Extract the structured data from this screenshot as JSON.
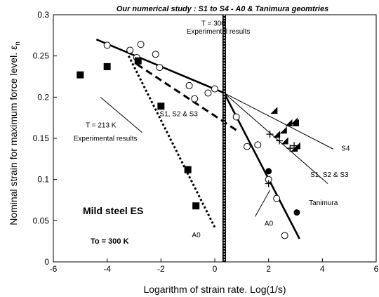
{
  "chart_data": {
    "type": "scatter",
    "title": "Our numerical study : S1 to S4 - A0 & Tanimura geomtries",
    "xlabel": "Logarithm of strain rate. Log(1/s)",
    "ylabel": "Nominal strain for maximum force level. ε",
    "ylabel_subscript": "n",
    "xlim": [
      -6,
      6
    ],
    "ylim": [
      0,
      0.3
    ],
    "xticks": [
      "-6",
      "-4",
      "-2",
      "0",
      "2",
      "4",
      "6"
    ],
    "yticks": [
      "0",
      "0.05",
      "0.1",
      "0.15",
      "0.2",
      "0.25",
      "0.3"
    ],
    "xtick_values": [
      -6,
      -4,
      -2,
      0,
      2,
      4,
      6
    ],
    "ytick_values": [
      0,
      0.05,
      0.1,
      0.15,
      0.2,
      0.25,
      0.3
    ],
    "grid": false,
    "vertical_marker_x": 0.35,
    "series": [
      {
        "marker": "open-circle",
        "points": [
          [
            -4,
            0.263
          ],
          [
            -3.15,
            0.257
          ],
          [
            -2.9,
            0.248
          ],
          [
            -2.75,
            0.264
          ],
          [
            -2.2,
            0.252
          ],
          [
            -2.05,
            0.236
          ],
          [
            -0.95,
            0.214
          ],
          [
            -0.75,
            0.198
          ],
          [
            -0.25,
            0.205
          ],
          [
            0,
            0.21
          ],
          [
            0.8,
            0.176
          ],
          [
            1.2,
            0.14
          ],
          [
            1.6,
            0.142
          ],
          [
            2,
            0.1
          ],
          [
            2.3,
            0.077
          ],
          [
            2.6,
            0.032
          ]
        ]
      },
      {
        "marker": "filled-square",
        "points": [
          [
            -5,
            0.227
          ],
          [
            -4,
            0.237
          ],
          [
            -2.85,
            0.244
          ],
          [
            -2,
            0.189
          ],
          [
            -1,
            0.112
          ],
          [
            -0.7,
            0.068
          ]
        ]
      },
      {
        "marker": "filled-circle",
        "points": [
          [
            2,
            0.11
          ],
          [
            3.05,
            0.06
          ]
        ]
      },
      {
        "marker": "plus",
        "points": [
          [
            2,
            0.095
          ],
          [
            2.05,
            0.155
          ],
          [
            2.4,
            0.147
          ],
          [
            2.8,
            0.138
          ],
          [
            2.95,
            0.141
          ]
        ]
      },
      {
        "marker": "half-square",
        "points": [
          [
            2.2,
            0.184
          ],
          [
            2.75,
            0.169
          ],
          [
            2.95,
            0.171
          ],
          [
            3,
            0.169
          ],
          [
            2.3,
            0.155
          ],
          [
            2.55,
            0.16
          ],
          [
            2.6,
            0.147
          ],
          [
            2.95,
            0.138
          ],
          [
            3.05,
            0.141
          ]
        ]
      }
    ],
    "lines": [
      {
        "style": "solid-thick",
        "points": [
          [
            -4.4,
            0.27
          ],
          [
            0.35,
            0.205
          ]
        ]
      },
      {
        "style": "solid-thick",
        "points": [
          [
            0.35,
            0.205
          ],
          [
            3.15,
            0.028
          ]
        ]
      },
      {
        "style": "solid",
        "points": [
          [
            0.35,
            0.205
          ],
          [
            3.05,
            0.035
          ]
        ]
      },
      {
        "style": "solid",
        "points": [
          [
            0.35,
            0.205
          ],
          [
            4.4,
            0.137
          ]
        ]
      },
      {
        "style": "solid",
        "points": [
          [
            0.35,
            0.205
          ],
          [
            4.2,
            0.095
          ]
        ]
      },
      {
        "style": "dotted-thick",
        "points": [
          [
            -3.2,
            0.25
          ],
          [
            0,
            0.042
          ]
        ]
      },
      {
        "style": "dashed-thick",
        "points": [
          [
            -2.9,
            0.24
          ],
          [
            0.8,
            0.16
          ]
        ]
      }
    ],
    "annotations": [
      {
        "text": "T = 300",
        "x": -0.5,
        "y": 0.287
      },
      {
        "text": "Experimental results",
        "x": -1.05,
        "y": 0.277
      },
      {
        "text": "S1, S2 & S3",
        "x": -2.05,
        "y": 0.177
      },
      {
        "text": "T = 213 K",
        "x": -4.8,
        "y": 0.163
      },
      {
        "text": "Experimental results",
        "x": -5.25,
        "y": 0.147
      },
      {
        "text": "S4",
        "x": 4.7,
        "y": 0.135
      },
      {
        "text": "S1, S2 & S3",
        "x": 3.55,
        "y": 0.103
      },
      {
        "text": "Tanimura",
        "x": 3.5,
        "y": 0.069
      },
      {
        "text": "A0",
        "x": 1.85,
        "y": 0.044
      },
      {
        "text": "A0",
        "x": -0.85,
        "y": 0.03
      }
    ],
    "inset_labels": [
      "Mild steel ES",
      "To = 300 K"
    ]
  }
}
